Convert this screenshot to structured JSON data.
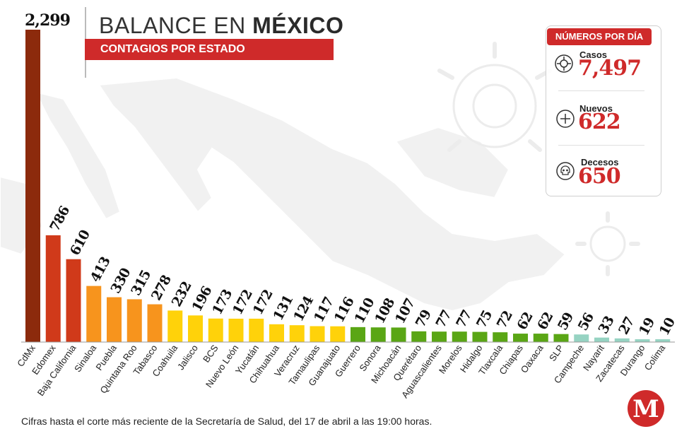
{
  "header": {
    "title_part1": "BALANCE EN ",
    "title_part2": "MÉXICO",
    "subtitle": "CONTAGIOS POR ESTADO"
  },
  "panel": {
    "heading": "NÚMEROS POR DÍA",
    "cases_label": "Casos",
    "cases_value": "7,497",
    "new_label": "Nuevos",
    "new_value": "622",
    "deaths_label": "Decesos",
    "deaths_value": "650"
  },
  "footnote": "Cifras hasta el corte más reciente de la Secretaría de Salud, del 17 de abril a las 19:00 horas.",
  "logo_letter": "M",
  "colors": {
    "accent": "#cf2a2a",
    "dark_red": "#8c2a0c",
    "red": "#d03a1a",
    "orange": "#f7941d",
    "yellow": "#ffd20a",
    "green": "#5aa615",
    "teal": "#96d3c2"
  },
  "chart_data": {
    "type": "bar",
    "title": "BALANCE EN MÉXICO",
    "subtitle": "CONTAGIOS POR ESTADO",
    "categories": [
      "CdMx",
      "Edomex",
      "Baja California",
      "Sinaloa",
      "Puebla",
      "Quintana Roo",
      "Tabasco",
      "Coahuila",
      "Jalisco",
      "BCS",
      "Nuevo León",
      "Yucatán",
      "Chihuahua",
      "Veracruz",
      "Tamaulipas",
      "Guanajuato",
      "Guerrero",
      "Sonora",
      "Michoacán",
      "Querétaro",
      "Aguascalientes",
      "Morelos",
      "Hidalgo",
      "Tlaxcala",
      "Chiapas",
      "Oaxaca",
      "SLP",
      "Campeche",
      "Nayarit",
      "Zacatecas",
      "Durango",
      "Colima"
    ],
    "values": [
      2299,
      786,
      610,
      413,
      330,
      315,
      278,
      232,
      196,
      173,
      172,
      172,
      131,
      124,
      117,
      116,
      110,
      108,
      107,
      79,
      77,
      77,
      75,
      72,
      62,
      62,
      59,
      56,
      33,
      27,
      19,
      10
    ],
    "value_labels": [
      "2,299",
      "786",
      "610",
      "413",
      "330",
      "315",
      "278",
      "232",
      "196",
      "173",
      "172",
      "172",
      "131",
      "124",
      "117",
      "116",
      "110",
      "108",
      "107",
      "79",
      "77",
      "77",
      "75",
      "72",
      "62",
      "62",
      "59",
      "56",
      "33",
      "27",
      "19",
      "10"
    ],
    "color_groups": [
      "dark_red",
      "red",
      "red",
      "orange",
      "orange",
      "orange",
      "orange",
      "yellow",
      "yellow",
      "yellow",
      "yellow",
      "yellow",
      "yellow",
      "yellow",
      "yellow",
      "yellow",
      "green",
      "green",
      "green",
      "green",
      "green",
      "green",
      "green",
      "green",
      "green",
      "green",
      "green",
      "teal",
      "teal",
      "teal",
      "teal",
      "teal"
    ],
    "ylim": [
      0,
      2299
    ],
    "grid": false,
    "legend": "none"
  }
}
